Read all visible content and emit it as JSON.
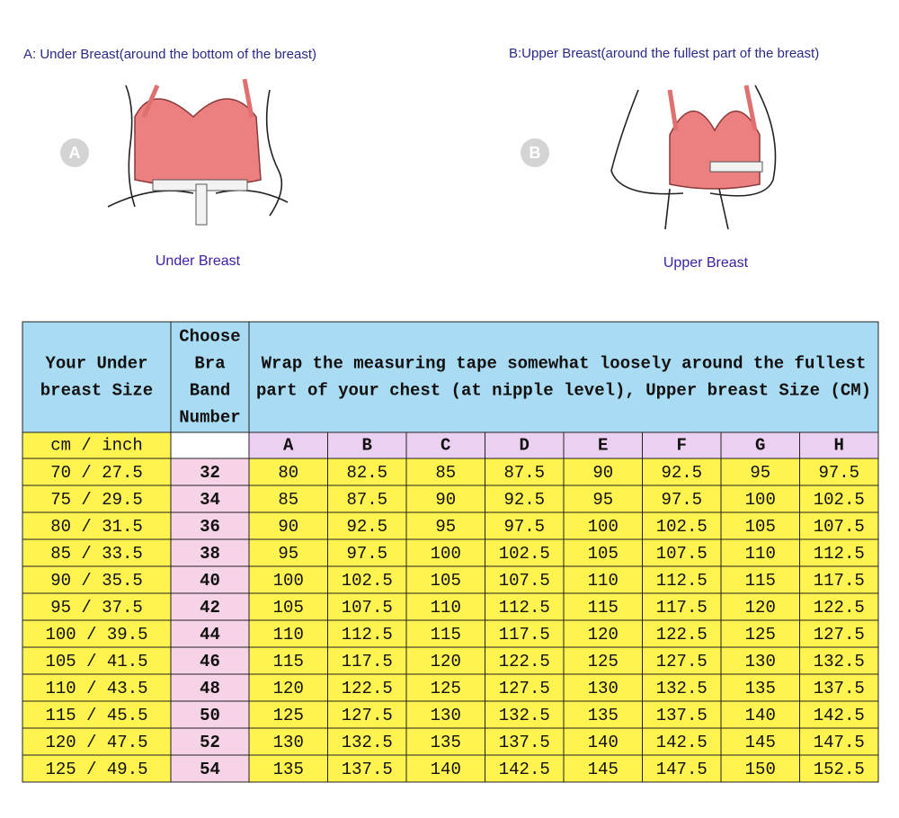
{
  "illustrations": [
    {
      "caption": "A: Under Breast(around the bottom of the breast)",
      "badge": "A",
      "label": "Under Breast"
    },
    {
      "caption": "B:Upper Breast(around the fullest part of the breast)",
      "badge": "B",
      "label": "Upper Breast"
    }
  ],
  "table": {
    "header": {
      "col1": [
        "Your Under",
        "breast Size"
      ],
      "col2": [
        "Choose",
        "Bra",
        "Band",
        "Number"
      ],
      "col3": [
        "Wrap the measuring tape somewhat loosely around the fullest",
        "part of your chest (at nipple level), Upper breast Size (CM)"
      ]
    },
    "units": "cm / inch",
    "cups": [
      "A",
      "B",
      "C",
      "D",
      "E",
      "F",
      "G",
      "H"
    ],
    "rows": [
      [
        "70 / 27.5",
        32,
        80,
        82.5,
        85,
        87.5,
        90,
        92.5,
        95,
        97.5
      ],
      [
        "75 / 29.5",
        34,
        85,
        87.5,
        90,
        92.5,
        95,
        97.5,
        100,
        102.5
      ],
      [
        "80 / 31.5",
        36,
        90,
        92.5,
        95,
        97.5,
        100,
        102.5,
        105,
        107.5
      ],
      [
        "85 / 33.5",
        38,
        95,
        97.5,
        100,
        102.5,
        105,
        107.5,
        110,
        112.5
      ],
      [
        "90 / 35.5",
        40,
        100,
        102.5,
        105,
        107.5,
        110,
        112.5,
        115,
        117.5
      ],
      [
        "95 / 37.5",
        42,
        105,
        107.5,
        110,
        112.5,
        115,
        117.5,
        120,
        122.5
      ],
      [
        "100 / 39.5",
        44,
        110,
        112.5,
        115,
        117.5,
        120,
        122.5,
        125,
        127.5
      ],
      [
        "105 / 41.5",
        46,
        115,
        117.5,
        120,
        122.5,
        125,
        127.5,
        130,
        132.5
      ],
      [
        "110 / 43.5",
        48,
        120,
        122.5,
        125,
        127.5,
        130,
        132.5,
        135,
        137.5
      ],
      [
        "115 / 45.5",
        50,
        125,
        127.5,
        130,
        132.5,
        135,
        137.5,
        140,
        142.5
      ],
      [
        "120 / 47.5",
        52,
        130,
        132.5,
        135,
        137.5,
        140,
        142.5,
        145,
        147.5
      ],
      [
        "125 / 49.5",
        54,
        135,
        137.5,
        140,
        142.5,
        145,
        147.5,
        150,
        152.5
      ]
    ]
  }
}
